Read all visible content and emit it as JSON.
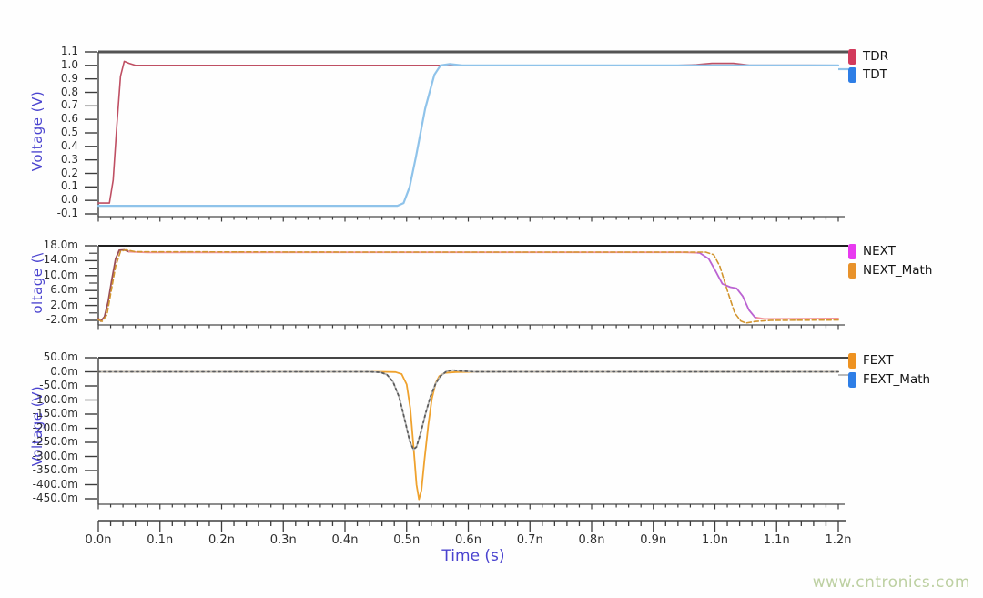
{
  "watermark": "www.cntronics.com",
  "colors": {
    "axis_title": "#4a43cf",
    "tick_label": "#2e2e2e",
    "frame": "#4a4a4a",
    "watermark": "#bdd0a2"
  },
  "xaxis": {
    "title": "Time (s)",
    "unit": "n",
    "range": [
      0,
      1.2
    ],
    "minor_step": 0.02,
    "tick_labels": [
      "0.0n",
      "0.1n",
      "0.2n",
      "0.3n",
      "0.4n",
      "0.5n",
      "0.6n",
      "0.7n",
      "0.8n",
      "0.9n",
      "1.0n",
      "1.1n",
      "1.2n"
    ],
    "tick_values": [
      0,
      0.1,
      0.2,
      0.3,
      0.4,
      0.5,
      0.6,
      0.7,
      0.8,
      0.9,
      1.0,
      1.1,
      1.2
    ]
  },
  "chart_data": [
    {
      "type": "line",
      "ylabel": "Voltage (V)",
      "ylim": [
        -0.1,
        1.1
      ],
      "ytick_labels": [
        "1.1",
        "1.0",
        "0.9",
        "0.8",
        "0.7",
        "0.6",
        "0.5",
        "0.4",
        "0.3",
        "0.2",
        "0.1",
        "0.0",
        "-0.1"
      ],
      "ytick_values": [
        1.1,
        1.0,
        0.9,
        0.8,
        0.7,
        0.6,
        0.5,
        0.4,
        0.3,
        0.2,
        0.1,
        0.0,
        -0.1
      ],
      "minor_ytick_values": [],
      "legend": [
        {
          "label": "TDR",
          "swatch": "#d23a5c"
        },
        {
          "label": "TDT",
          "swatch": "#2e7ee6"
        }
      ],
      "series": [
        {
          "name": "TDR",
          "color": "#bf4f63",
          "width": 1.6,
          "points": [
            [
              0,
              -0.02
            ],
            [
              0.018,
              -0.02
            ],
            [
              0.024,
              0.15
            ],
            [
              0.03,
              0.55
            ],
            [
              0.036,
              0.92
            ],
            [
              0.042,
              1.03
            ],
            [
              0.05,
              1.015
            ],
            [
              0.06,
              1.0
            ],
            [
              0.94,
              1.0
            ],
            [
              0.97,
              1.005
            ],
            [
              0.995,
              1.015
            ],
            [
              1.03,
              1.015
            ],
            [
              1.055,
              1.002
            ],
            [
              1.2,
              1.0
            ]
          ]
        },
        {
          "name": "TDT",
          "color": "#8fc3ea",
          "width": 2.2,
          "points": [
            [
              0,
              -0.04
            ],
            [
              0.485,
              -0.04
            ],
            [
              0.495,
              -0.02
            ],
            [
              0.505,
              0.1
            ],
            [
              0.515,
              0.32
            ],
            [
              0.53,
              0.68
            ],
            [
              0.545,
              0.93
            ],
            [
              0.555,
              1.0
            ],
            [
              0.57,
              1.01
            ],
            [
              0.59,
              1.0
            ],
            [
              1.2,
              1.0
            ]
          ]
        }
      ]
    },
    {
      "type": "line",
      "ylabel": "oltage (\\",
      "ylim": [
        -2,
        18
      ],
      "ytick_labels": [
        "18.0m",
        "14.0m",
        "10.0m",
        "6.0m",
        "2.0m",
        "-2.0m"
      ],
      "ytick_values": [
        18,
        14,
        10,
        6,
        2,
        -2
      ],
      "minor_ytick_values": [
        16,
        12,
        8,
        4,
        0
      ],
      "legend": [
        {
          "label": "NEXT",
          "swatch": "#e83af0"
        },
        {
          "label": "NEXT_Math",
          "swatch": "#e8922b"
        }
      ],
      "series": [
        {
          "name": "NEXT",
          "color": "#f2929b",
          "width": 1.8,
          "color_segments": [
            {
              "until": 0.05,
              "color": "#9a4e57"
            },
            {
              "until": 0.972,
              "color": "#f2929b"
            },
            {
              "until": 1.068,
              "color": "#bb63d2"
            },
            {
              "until": 1.3,
              "color": "#f2929b"
            }
          ],
          "points": [
            [
              0,
              -1.5
            ],
            [
              0.004,
              -2.2
            ],
            [
              0.01,
              -1
            ],
            [
              0.016,
              3
            ],
            [
              0.022,
              9
            ],
            [
              0.028,
              14.5
            ],
            [
              0.034,
              16.8
            ],
            [
              0.042,
              16.9
            ],
            [
              0.05,
              16.4
            ],
            [
              0.08,
              16.2
            ],
            [
              0.4,
              16.25
            ],
            [
              0.95,
              16.25
            ],
            [
              0.975,
              16.1
            ],
            [
              0.99,
              14.5
            ],
            [
              1.0,
              11.5
            ],
            [
              1.012,
              7.8
            ],
            [
              1.025,
              6.9
            ],
            [
              1.035,
              6.6
            ],
            [
              1.045,
              4.5
            ],
            [
              1.055,
              0.8
            ],
            [
              1.065,
              -1.2
            ],
            [
              1.08,
              -1.6
            ],
            [
              1.2,
              -1.5
            ]
          ]
        },
        {
          "name": "NEXT_Math",
          "color": "#d2952f",
          "dash": "5 3",
          "width": 1.6,
          "points": [
            [
              0,
              -1.8
            ],
            [
              0.006,
              -2.3
            ],
            [
              0.014,
              -0.5
            ],
            [
              0.02,
              5
            ],
            [
              0.028,
              12.5
            ],
            [
              0.036,
              16.5
            ],
            [
              0.045,
              16.9
            ],
            [
              0.06,
              16.4
            ],
            [
              0.4,
              16.3
            ],
            [
              0.985,
              16.3
            ],
            [
              0.998,
              15.6
            ],
            [
              1.008,
              12.5
            ],
            [
              1.02,
              6
            ],
            [
              1.032,
              0
            ],
            [
              1.042,
              -2.2
            ],
            [
              1.05,
              -2.7
            ],
            [
              1.065,
              -2.3
            ],
            [
              1.09,
              -2.0
            ],
            [
              1.2,
              -1.9
            ]
          ]
        }
      ]
    },
    {
      "type": "line",
      "ylabel": "Voltage (V)",
      "ylim": [
        -450,
        50
      ],
      "ytick_labels": [
        "50.0m",
        "0.0m",
        "-50.0m",
        "-100.0m",
        "-150.0m",
        "-200.0m",
        "-250.0m",
        "-300.0m",
        "-350.0m",
        "-400.0m",
        "-450.0m"
      ],
      "ytick_values": [
        50,
        0,
        -50,
        -100,
        -150,
        -200,
        -250,
        -300,
        -350,
        -400,
        -450
      ],
      "minor_ytick_values": [],
      "legend": [
        {
          "label": "FEXT",
          "swatch": "#ee9221"
        },
        {
          "label": "FEXT_Math",
          "swatch": "#2e7ee6"
        }
      ],
      "series": [
        {
          "name": "FEXT",
          "color": "#efa22e",
          "width": 1.8,
          "points": [
            [
              0,
              0
            ],
            [
              0.46,
              0
            ],
            [
              0.482,
              -1
            ],
            [
              0.492,
              -8
            ],
            [
              0.5,
              -45
            ],
            [
              0.506,
              -130
            ],
            [
              0.511,
              -260
            ],
            [
              0.516,
              -400
            ],
            [
              0.52,
              -452
            ],
            [
              0.524,
              -420
            ],
            [
              0.529,
              -310
            ],
            [
              0.535,
              -190
            ],
            [
              0.541,
              -95
            ],
            [
              0.547,
              -40
            ],
            [
              0.553,
              -15
            ],
            [
              0.562,
              -4
            ],
            [
              0.58,
              -1
            ],
            [
              0.62,
              0
            ],
            [
              1.2,
              0
            ]
          ]
        },
        {
          "name": "FEXT_Math",
          "color": "#5c5c5c",
          "base_color": "#b3b3b3",
          "dash": "2 4",
          "width": 1.8,
          "points": [
            [
              0,
              0
            ],
            [
              0.44,
              0
            ],
            [
              0.458,
              -2
            ],
            [
              0.468,
              -10
            ],
            [
              0.478,
              -35
            ],
            [
              0.488,
              -90
            ],
            [
              0.497,
              -170
            ],
            [
              0.505,
              -245
            ],
            [
              0.511,
              -275
            ],
            [
              0.516,
              -266
            ],
            [
              0.523,
              -215
            ],
            [
              0.531,
              -145
            ],
            [
              0.539,
              -85
            ],
            [
              0.547,
              -42
            ],
            [
              0.555,
              -15
            ],
            [
              0.565,
              2
            ],
            [
              0.575,
              6
            ],
            [
              0.588,
              3
            ],
            [
              0.61,
              0
            ],
            [
              1.2,
              0
            ]
          ]
        }
      ]
    }
  ]
}
